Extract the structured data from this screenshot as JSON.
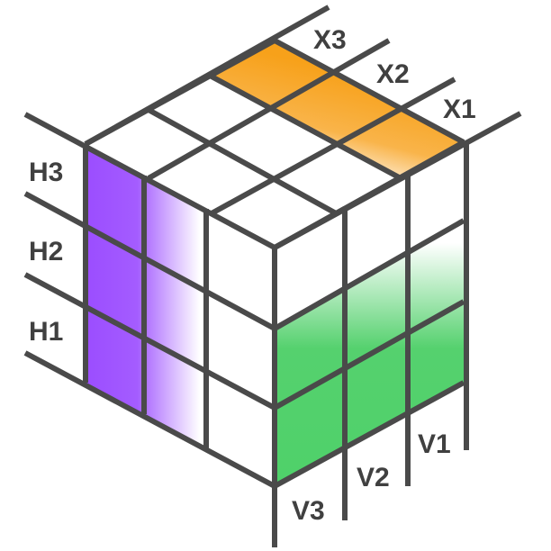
{
  "diagram": {
    "description_labels": {
      "top": [
        "X3",
        "X2",
        "X1"
      ],
      "left": [
        "H3",
        "H2",
        "H1"
      ],
      "bottom": [
        "V3",
        "V2",
        "V1"
      ]
    },
    "colors": {
      "top_highlight": "#f7a11a",
      "left_highlight": "#9b4dff",
      "right_highlight": "#4fd16a",
      "grid_line": "#4a4a4a",
      "label_text": "#404040",
      "cell_face": "#ffffff"
    }
  }
}
